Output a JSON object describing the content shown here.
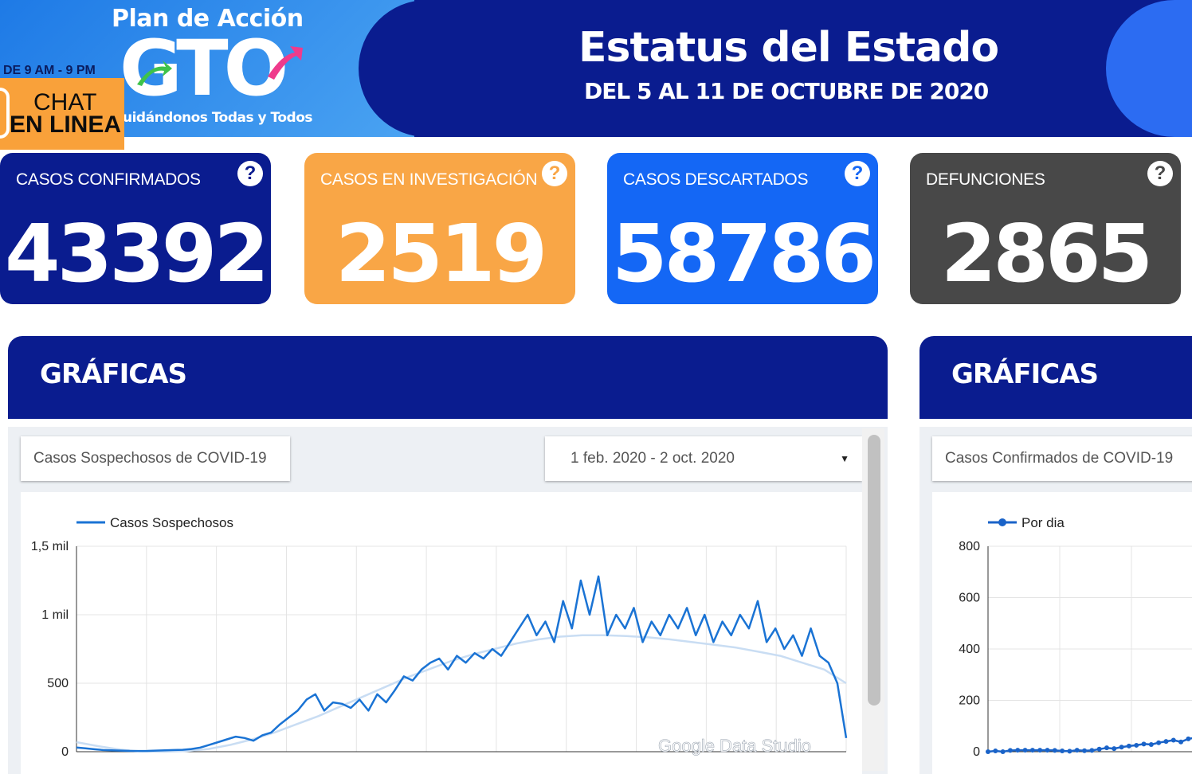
{
  "header": {
    "plan_title": "Plan de Acción",
    "logo_text": "GTO",
    "slogan": "uidándonos Todas y Todos",
    "hours": "DE 9 AM - 9 PM",
    "chat_line1": "CHAT",
    "chat_line2": "EN LINEA",
    "status_title": "Estatus del Estado",
    "status_subtitle": "DEL 5 AL 11 DE OCTUBRE DE 2020"
  },
  "cards": [
    {
      "label": "CASOS CONFIRMADOS",
      "value": "43392",
      "color": "#0a1c8f",
      "help": "?"
    },
    {
      "label": "CASOS EN INVESTIGACIÓN",
      "value": "2519",
      "color": "#f9a646",
      "help": "?"
    },
    {
      "label": "CASOS DESCARTADOS",
      "value": "58786",
      "color": "#1467f5",
      "help": "?"
    },
    {
      "label": "DEFUNCIONES",
      "value": "2865",
      "color": "#484848",
      "help": "?"
    }
  ],
  "sections": [
    {
      "title": "GRÁFICAS"
    },
    {
      "title": "GRÁFICAS"
    }
  ],
  "left_panel": {
    "chart_selector": "Casos Sospechosos de COVID-19",
    "date_range": "1 feb. 2020 - 2 oct. 2020",
    "watermark": "Google Data Studio"
  },
  "right_panel": {
    "chart_selector": "Casos Confirmados de COVID-19"
  },
  "chart_data": [
    {
      "type": "line",
      "legend": [
        "Casos Sospechosos"
      ],
      "series": [
        {
          "name": "Casos Sospechosos",
          "color": "#1a73d4",
          "values": [
            30,
            25,
            18,
            12,
            10,
            8,
            6,
            5,
            6,
            8,
            10,
            12,
            14,
            20,
            30,
            50,
            70,
            90,
            110,
            100,
            80,
            120,
            140,
            200,
            250,
            300,
            380,
            420,
            300,
            360,
            350,
            320,
            380,
            300,
            420,
            360,
            450,
            550,
            520,
            600,
            650,
            680,
            600,
            700,
            650,
            720,
            680,
            750,
            700,
            800,
            900,
            1000,
            850,
            950,
            800,
            1100,
            900,
            1250,
            1000,
            1280,
            850,
            1000,
            900,
            1050,
            800,
            950,
            850,
            1000,
            900,
            1050,
            850,
            1000,
            800,
            950,
            850,
            1000,
            900,
            1100,
            800,
            900,
            750,
            850,
            700,
            900,
            700,
            650,
            500,
            100
          ]
        },
        {
          "name": "",
          "color": "#c9ddf3",
          "values": [
            70,
            40,
            15,
            2,
            0,
            5,
            20,
            50,
            90,
            140,
            200,
            260,
            330,
            400,
            470,
            540,
            600,
            660,
            710,
            750,
            790,
            820,
            840,
            850,
            850,
            845,
            835,
            820,
            800,
            780,
            760,
            730,
            700,
            650,
            600,
            500
          ]
        }
      ],
      "yticks": [
        "0",
        "500",
        "1 mil",
        "1,5 mil"
      ],
      "ylim": [
        0,
        1500
      ]
    },
    {
      "type": "line",
      "legend": [
        "Por dia"
      ],
      "series": [
        {
          "name": "Por dia",
          "color": "#1a63c8",
          "values": [
            0,
            3,
            0,
            5,
            6,
            6,
            6,
            6,
            6,
            5,
            3,
            2,
            6,
            4,
            5,
            10,
            15,
            12,
            18,
            22,
            25,
            30,
            28,
            35,
            40,
            45,
            38,
            50,
            55,
            60
          ]
        }
      ],
      "yticks": [
        "0",
        "200",
        "400",
        "600",
        "800"
      ],
      "ylim": [
        0,
        800
      ]
    }
  ]
}
